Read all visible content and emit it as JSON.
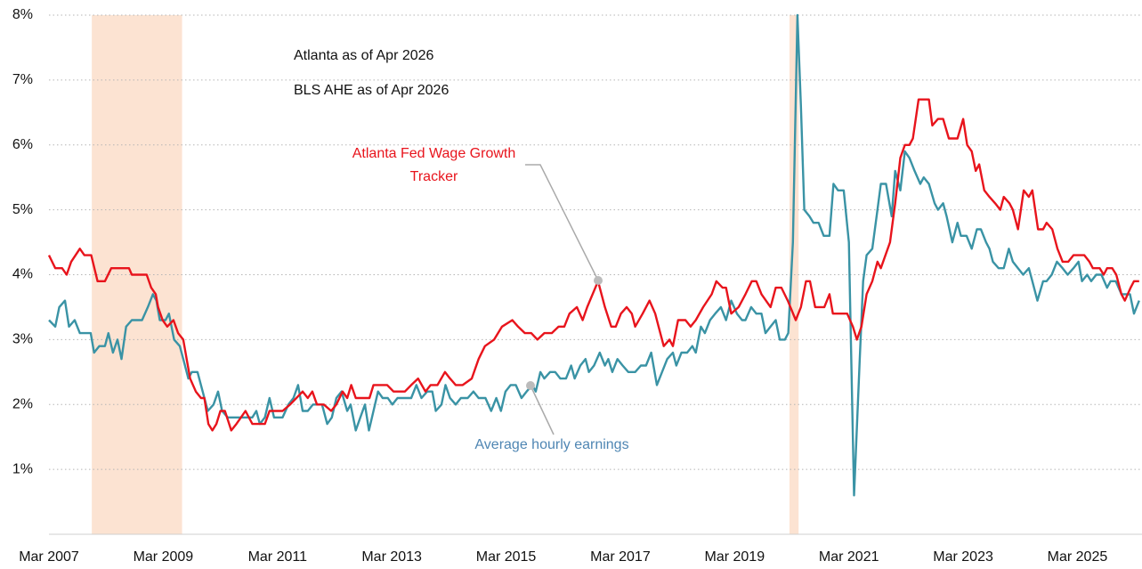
{
  "chart_data": {
    "type": "line",
    "annotations": [
      "Atlanta as of Apr 2026",
      "BLS AHE as of Apr 2026"
    ],
    "xlim": [
      2007.17,
      2026.3
    ],
    "xticks": [
      {
        "value": 2007.17,
        "label": "Mar 2007"
      },
      {
        "value": 2009.17,
        "label": "Mar 2009"
      },
      {
        "value": 2011.17,
        "label": "Mar 2011"
      },
      {
        "value": 2013.17,
        "label": "Mar 2013"
      },
      {
        "value": 2015.17,
        "label": "Mar 2015"
      },
      {
        "value": 2017.17,
        "label": "Mar 2017"
      },
      {
        "value": 2019.17,
        "label": "Mar 2019"
      },
      {
        "value": 2021.17,
        "label": "Mar 2021"
      },
      {
        "value": 2023.17,
        "label": "Mar 2023"
      },
      {
        "value": 2025.17,
        "label": "Mar 2025"
      }
    ],
    "ylim": [
      0,
      8
    ],
    "yticks": [
      {
        "value": 1,
        "label": "1%"
      },
      {
        "value": 2,
        "label": "2%"
      },
      {
        "value": 3,
        "label": "3%"
      },
      {
        "value": 4,
        "label": "4%"
      },
      {
        "value": 5,
        "label": "5%"
      },
      {
        "value": 6,
        "label": "6%"
      },
      {
        "value": 7,
        "label": "7%"
      },
      {
        "value": 8,
        "label": "8%"
      }
    ],
    "grid": true,
    "shaded_periods": [
      [
        2007.92,
        2009.5
      ],
      [
        2020.13,
        2020.29
      ]
    ],
    "shade_color": "#fce3d2",
    "series": [
      {
        "name": "Atlanta Fed Wage Growth Tracker",
        "color": "#e8141c",
        "label_color": "#e8141c",
        "x": [
          2007.17,
          2007.28,
          2007.4,
          2007.48,
          2007.56,
          2007.71,
          2007.79,
          2007.91,
          2008.02,
          2008.15,
          2008.26,
          2008.57,
          2008.62,
          2008.88,
          2008.96,
          2009.04,
          2009.08,
          2009.16,
          2009.24,
          2009.35,
          2009.43,
          2009.52,
          2009.58,
          2009.64,
          2009.74,
          2009.83,
          2009.89,
          2009.96,
          2010.03,
          2010.1,
          2010.17,
          2010.25,
          2010.36,
          2010.45,
          2010.53,
          2010.61,
          2010.73,
          2010.95,
          2011.03,
          2011.26,
          2011.39,
          2011.5,
          2011.61,
          2011.7,
          2011.78,
          2011.86,
          2011.98,
          2012.11,
          2012.2,
          2012.31,
          2012.39,
          2012.46,
          2012.54,
          2012.78,
          2012.85,
          2013.09,
          2013.2,
          2013.4,
          2013.51,
          2013.63,
          2013.76,
          2013.85,
          2013.97,
          2014.1,
          2014.19,
          2014.29,
          2014.41,
          2014.57,
          2014.69,
          2014.8,
          2014.96,
          2015.1,
          2015.28,
          2015.38,
          2015.5,
          2015.61,
          2015.72,
          2015.84,
          2015.97,
          2016.09,
          2016.19,
          2016.28,
          2016.41,
          2016.51,
          2016.59,
          2016.78,
          2016.9,
          2017.01,
          2017.09,
          2017.18,
          2017.28,
          2017.37,
          2017.43,
          2017.56,
          2017.68,
          2017.78,
          2017.84,
          2017.93,
          2018.03,
          2018.09,
          2018.18,
          2018.31,
          2018.4,
          2018.49,
          2018.62,
          2018.77,
          2018.85,
          2018.96,
          2019.02,
          2019.11,
          2019.24,
          2019.36,
          2019.47,
          2019.55,
          2019.64,
          2019.8,
          2019.89,
          2019.99,
          2020.1,
          2020.24,
          2020.33,
          2020.42,
          2020.49,
          2020.58,
          2020.74,
          2020.83,
          2020.89,
          2021.14,
          2021.24,
          2021.31,
          2021.39,
          2021.48,
          2021.58,
          2021.67,
          2021.73,
          2021.89,
          2021.98,
          2022.07,
          2022.15,
          2022.23,
          2022.29,
          2022.39,
          2022.57,
          2022.63,
          2022.73,
          2022.82,
          2022.92,
          2023.07,
          2023.17,
          2023.24,
          2023.32,
          2023.39,
          2023.45,
          2023.54,
          2023.63,
          2023.73,
          2023.82,
          2023.88,
          2023.98,
          2024.04,
          2024.13,
          2024.23,
          2024.32,
          2024.38,
          2024.48,
          2024.57,
          2024.63,
          2024.73,
          2024.82,
          2024.91,
          2025.01,
          2025.1,
          2025.29,
          2025.38,
          2025.44,
          2025.56,
          2025.63,
          2025.69,
          2025.78,
          2025.85,
          2025.94,
          2026.0,
          2026.1,
          2026.16,
          2026.25
        ],
        "values": [
          4.3,
          4.1,
          4.1,
          4.0,
          4.2,
          4.4,
          4.3,
          4.3,
          3.9,
          3.9,
          4.1,
          4.1,
          4.0,
          4.0,
          3.8,
          3.7,
          3.5,
          3.3,
          3.2,
          3.3,
          3.1,
          3.0,
          2.7,
          2.4,
          2.2,
          2.1,
          2.1,
          1.7,
          1.6,
          1.7,
          1.9,
          1.9,
          1.6,
          1.7,
          1.8,
          1.9,
          1.7,
          1.7,
          1.9,
          1.9,
          2.0,
          2.1,
          2.2,
          2.1,
          2.2,
          2.0,
          2.0,
          1.9,
          2.0,
          2.2,
          2.1,
          2.3,
          2.1,
          2.1,
          2.3,
          2.3,
          2.2,
          2.2,
          2.3,
          2.4,
          2.2,
          2.3,
          2.3,
          2.5,
          2.4,
          2.3,
          2.3,
          2.4,
          2.7,
          2.9,
          3.0,
          3.2,
          3.3,
          3.2,
          3.1,
          3.1,
          3.0,
          3.1,
          3.1,
          3.2,
          3.2,
          3.4,
          3.5,
          3.3,
          3.5,
          3.9,
          3.5,
          3.2,
          3.2,
          3.4,
          3.5,
          3.4,
          3.2,
          3.4,
          3.6,
          3.4,
          3.2,
          2.9,
          3.0,
          2.9,
          3.3,
          3.3,
          3.2,
          3.3,
          3.5,
          3.7,
          3.9,
          3.8,
          3.8,
          3.4,
          3.5,
          3.7,
          3.9,
          3.9,
          3.7,
          3.5,
          3.8,
          3.8,
          3.6,
          3.3,
          3.5,
          3.9,
          3.9,
          3.5,
          3.5,
          3.7,
          3.4,
          3.4,
          3.2,
          3.0,
          3.2,
          3.7,
          3.9,
          4.2,
          4.1,
          4.5,
          5.1,
          5.8,
          6.0,
          6.0,
          6.1,
          6.7,
          6.7,
          6.3,
          6.4,
          6.4,
          6.1,
          6.1,
          6.4,
          6.0,
          5.9,
          5.6,
          5.7,
          5.3,
          5.2,
          5.1,
          5.0,
          5.2,
          5.1,
          5.0,
          4.7,
          5.3,
          5.2,
          5.3,
          4.7,
          4.7,
          4.8,
          4.7,
          4.4,
          4.2,
          4.2,
          4.3,
          4.3,
          4.2,
          4.1,
          4.1,
          4.0,
          4.1,
          4.1,
          4.0,
          3.7,
          3.6,
          3.8,
          3.9,
          3.9
        ]
      },
      {
        "name": "Average hourly earnings",
        "color": "#3a93a5",
        "label_color": "#4f86b3",
        "x": [
          2007.17,
          2007.28,
          2007.35,
          2007.45,
          2007.52,
          2007.62,
          2007.71,
          2007.9,
          2007.96,
          2008.05,
          2008.15,
          2008.21,
          2008.29,
          2008.37,
          2008.44,
          2008.52,
          2008.62,
          2008.8,
          2008.9,
          2008.99,
          2009.05,
          2009.11,
          2009.21,
          2009.27,
          2009.36,
          2009.46,
          2009.52,
          2009.61,
          2009.67,
          2009.77,
          2009.86,
          2009.95,
          2010.05,
          2010.13,
          2010.2,
          2010.3,
          2010.45,
          2010.73,
          2010.8,
          2010.86,
          2010.95,
          2011.03,
          2011.11,
          2011.26,
          2011.36,
          2011.45,
          2011.53,
          2011.61,
          2011.7,
          2011.79,
          2011.86,
          2011.95,
          2012.04,
          2012.12,
          2012.2,
          2012.29,
          2012.39,
          2012.45,
          2012.54,
          2012.62,
          2012.7,
          2012.77,
          2012.85,
          2012.93,
          2013.01,
          2013.1,
          2013.18,
          2013.27,
          2013.35,
          2013.44,
          2013.51,
          2013.6,
          2013.69,
          2013.79,
          2013.88,
          2013.94,
          2014.04,
          2014.11,
          2014.19,
          2014.29,
          2014.38,
          2014.5,
          2014.6,
          2014.69,
          2014.81,
          2014.91,
          2015.0,
          2015.08,
          2015.16,
          2015.25,
          2015.34,
          2015.44,
          2015.53,
          2015.63,
          2015.69,
          2015.77,
          2015.84,
          2015.94,
          2016.03,
          2016.12,
          2016.22,
          2016.31,
          2016.37,
          2016.47,
          2016.56,
          2016.62,
          2016.71,
          2016.81,
          2016.9,
          2016.96,
          2017.03,
          2017.12,
          2017.21,
          2017.31,
          2017.43,
          2017.53,
          2017.62,
          2017.71,
          2017.81,
          2017.9,
          2017.99,
          2018.09,
          2018.15,
          2018.24,
          2018.34,
          2018.43,
          2018.49,
          2018.58,
          2018.65,
          2018.74,
          2018.83,
          2018.93,
          2019.02,
          2019.11,
          2019.21,
          2019.3,
          2019.36,
          2019.46,
          2019.55,
          2019.64,
          2019.71,
          2019.8,
          2019.89,
          2019.96,
          2020.05,
          2020.11,
          2020.19,
          2020.27,
          2020.33,
          2020.39,
          2020.48,
          2020.55,
          2020.64,
          2020.73,
          2020.83,
          2020.9,
          2020.98,
          2021.08,
          2021.17,
          2021.26,
          2021.36,
          2021.42,
          2021.48,
          2021.58,
          2021.67,
          2021.73,
          2021.82,
          2021.92,
          2021.98,
          2022.07,
          2022.15,
          2022.23,
          2022.32,
          2022.42,
          2022.48,
          2022.57,
          2022.67,
          2022.73,
          2022.82,
          2022.88,
          2022.98,
          2023.07,
          2023.13,
          2023.23,
          2023.32,
          2023.41,
          2023.48,
          2023.57,
          2023.63,
          2023.69,
          2023.79,
          2023.88,
          2023.97,
          2024.04,
          2024.13,
          2024.22,
          2024.32,
          2024.38,
          2024.47,
          2024.57,
          2024.63,
          2024.72,
          2024.81,
          2024.91,
          2025.0,
          2025.1,
          2025.19,
          2025.25,
          2025.34,
          2025.41,
          2025.5,
          2025.59,
          2025.69,
          2025.75,
          2025.84,
          2025.94,
          2026.03,
          2026.09,
          2026.16,
          2026.25
        ],
        "values": [
          3.3,
          3.2,
          3.5,
          3.6,
          3.2,
          3.3,
          3.1,
          3.1,
          2.8,
          2.9,
          2.9,
          3.1,
          2.8,
          3.0,
          2.7,
          3.2,
          3.3,
          3.3,
          3.5,
          3.7,
          3.6,
          3.3,
          3.3,
          3.4,
          3.0,
          2.9,
          2.7,
          2.4,
          2.5,
          2.5,
          2.2,
          1.9,
          2.0,
          2.2,
          1.9,
          1.8,
          1.8,
          1.8,
          1.9,
          1.7,
          1.8,
          2.1,
          1.8,
          1.8,
          2.0,
          2.1,
          2.3,
          1.9,
          1.9,
          2.0,
          2.0,
          2.0,
          1.7,
          1.8,
          2.1,
          2.2,
          1.9,
          2.0,
          1.6,
          1.8,
          2.0,
          1.6,
          1.9,
          2.2,
          2.1,
          2.1,
          2.0,
          2.1,
          2.1,
          2.1,
          2.1,
          2.3,
          2.1,
          2.2,
          2.2,
          1.9,
          2.0,
          2.3,
          2.1,
          2.0,
          2.1,
          2.1,
          2.2,
          2.1,
          2.1,
          1.9,
          2.1,
          1.9,
          2.2,
          2.3,
          2.3,
          2.1,
          2.2,
          2.3,
          2.2,
          2.5,
          2.4,
          2.5,
          2.5,
          2.4,
          2.4,
          2.6,
          2.4,
          2.6,
          2.7,
          2.5,
          2.6,
          2.8,
          2.6,
          2.7,
          2.5,
          2.7,
          2.6,
          2.5,
          2.5,
          2.6,
          2.6,
          2.8,
          2.3,
          2.5,
          2.7,
          2.8,
          2.6,
          2.8,
          2.8,
          2.9,
          2.8,
          3.2,
          3.1,
          3.3,
          3.4,
          3.5,
          3.3,
          3.6,
          3.4,
          3.3,
          3.3,
          3.5,
          3.4,
          3.4,
          3.1,
          3.2,
          3.3,
          3.0,
          3.0,
          3.1,
          4.5,
          8.0,
          6.6,
          5.0,
          4.9,
          4.8,
          4.8,
          4.6,
          4.6,
          5.4,
          5.3,
          5.3,
          4.5,
          0.6,
          2.7,
          3.9,
          4.3,
          4.4,
          5.0,
          5.4,
          5.4,
          4.9,
          5.6,
          5.3,
          5.9,
          5.8,
          5.6,
          5.4,
          5.5,
          5.4,
          5.1,
          5.0,
          5.1,
          4.9,
          4.5,
          4.8,
          4.6,
          4.6,
          4.4,
          4.7,
          4.7,
          4.5,
          4.4,
          4.2,
          4.1,
          4.1,
          4.4,
          4.2,
          4.1,
          4.0,
          4.1,
          3.9,
          3.6,
          3.9,
          3.9,
          4.0,
          4.2,
          4.1,
          4.0,
          4.1,
          4.2,
          3.9,
          4.0,
          3.9,
          4.0,
          4.0,
          3.8,
          3.9,
          3.9,
          3.7,
          3.7,
          3.7,
          3.4,
          3.6
        ]
      }
    ]
  }
}
